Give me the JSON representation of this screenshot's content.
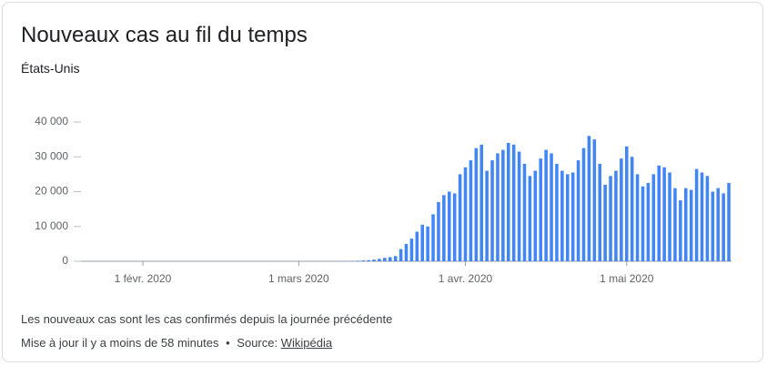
{
  "chart_data": {
    "type": "bar",
    "title": "Nouveaux cas au fil du temps",
    "subtitle": "États-Unis",
    "note": "Les nouveaux cas sont les cas confirmés depuis la journée précédente",
    "updated": "Mise à jour il y a moins de 58 minutes",
    "separator": "•",
    "source_label": "Source:",
    "source": "Wikipédia",
    "color": "#4285f4",
    "grid": false,
    "ylim": [
      0,
      40000
    ],
    "yticks": [
      0,
      {
        "value": 10000,
        "label": "10 000"
      },
      {
        "value": 20000,
        "label": "20 000"
      },
      {
        "value": 30000,
        "label": "30 000"
      },
      {
        "value": 40000,
        "label": "40 000"
      }
    ],
    "categories": [
      null,
      null,
      null,
      null,
      null,
      null,
      null,
      null,
      null,
      null,
      null,
      "1 févr. 2020",
      null,
      null,
      null,
      null,
      null,
      null,
      null,
      null,
      null,
      null,
      null,
      null,
      null,
      null,
      null,
      null,
      null,
      null,
      null,
      null,
      null,
      null,
      null,
      null,
      null,
      null,
      null,
      null,
      "1 mars 2020",
      null,
      null,
      null,
      null,
      null,
      null,
      null,
      null,
      null,
      null,
      null,
      null,
      null,
      null,
      null,
      null,
      null,
      null,
      null,
      null,
      null,
      null,
      null,
      null,
      null,
      null,
      null,
      null,
      null,
      null,
      "1 avr. 2020",
      null,
      null,
      null,
      null,
      null,
      null,
      null,
      null,
      null,
      null,
      null,
      null,
      null,
      null,
      null,
      null,
      null,
      null,
      null,
      null,
      null,
      null,
      null,
      null,
      null,
      null,
      null,
      null,
      null,
      "1 mai 2020",
      null,
      null,
      null,
      null,
      null,
      null,
      null,
      null,
      null,
      null,
      null,
      null,
      null,
      null,
      null,
      null,
      null,
      null,
      null
    ],
    "values": [
      1,
      0,
      0,
      0,
      1,
      0,
      1,
      0,
      0,
      0,
      1,
      1,
      1,
      0,
      0,
      0,
      0,
      0,
      0,
      0,
      0,
      1,
      0,
      0,
      0,
      0,
      0,
      0,
      0,
      0,
      1,
      0,
      0,
      0,
      0,
      0,
      0,
      0,
      0,
      0,
      2,
      3,
      4,
      5,
      8,
      10,
      20,
      25,
      40,
      60,
      100,
      150,
      250,
      350,
      500,
      700,
      1000,
      1200,
      1500,
      3500,
      5000,
      6500,
      8500,
      10500,
      10000,
      13500,
      17000,
      19000,
      20000,
      19500,
      25000,
      27000,
      29000,
      32500,
      33500,
      26000,
      29000,
      31000,
      32000,
      34000,
      33500,
      31500,
      28000,
      24500,
      26000,
      29500,
      32000,
      31000,
      28000,
      26000,
      25000,
      25500,
      29000,
      32500,
      36000,
      35000,
      28000,
      22000,
      24500,
      26000,
      29500,
      33000,
      30000,
      25000,
      21500,
      22500,
      25000,
      27500,
      27000,
      25500,
      21000,
      17500,
      21000,
      20500,
      26500,
      25500,
      24500,
      20000,
      21000,
      19500,
      22500
    ]
  }
}
